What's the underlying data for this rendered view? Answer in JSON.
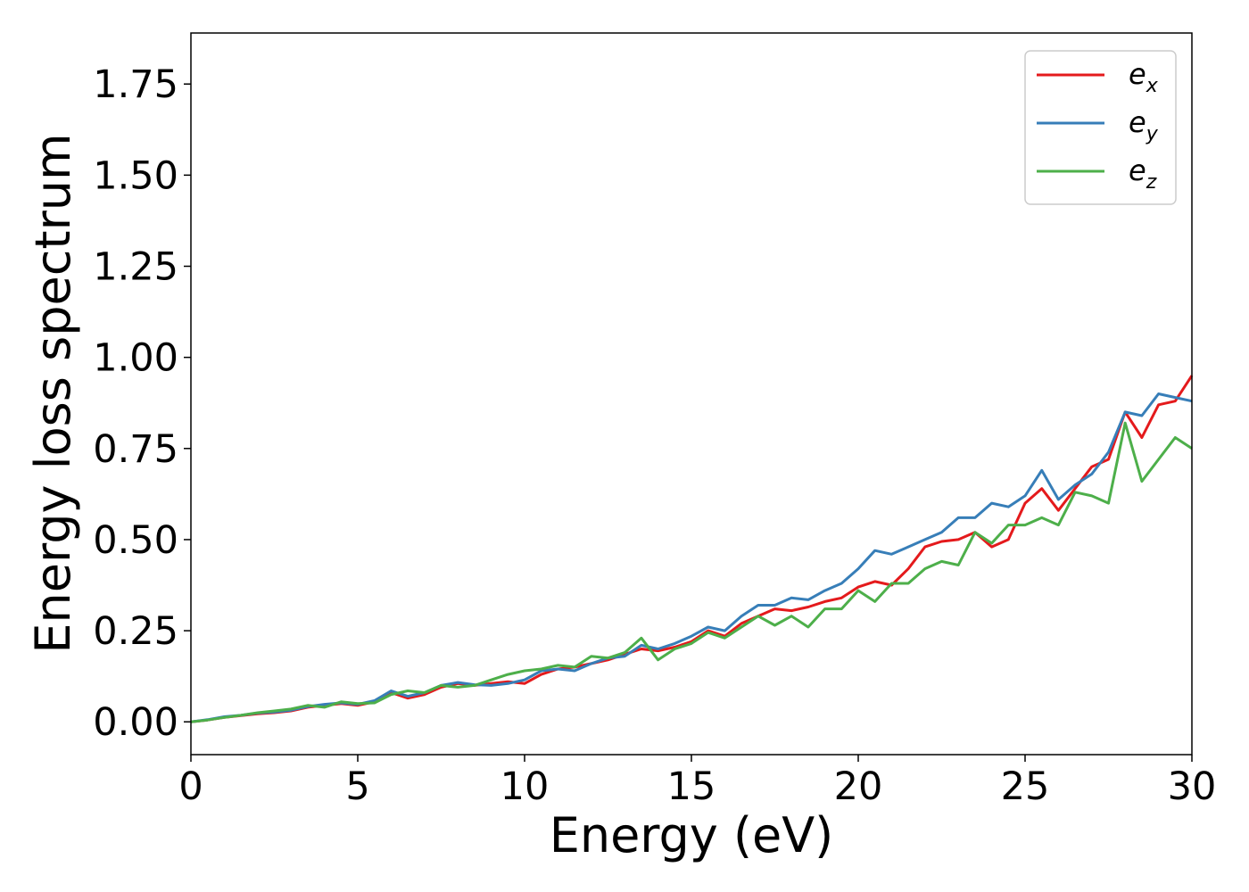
{
  "chart_data": {
    "type": "line",
    "title": "",
    "xlabel": "Energy (eV)",
    "ylabel": "Energy loss spectrum",
    "xlim": [
      0,
      30
    ],
    "ylim": [
      -0.09,
      1.89
    ],
    "xticks": [
      0,
      5,
      10,
      15,
      20,
      25,
      30
    ],
    "xtick_labels": [
      "0",
      "5",
      "10",
      "15",
      "20",
      "25",
      "30"
    ],
    "yticks": [
      0.0,
      0.25,
      0.5,
      0.75,
      1.0,
      1.25,
      1.5,
      1.75
    ],
    "ytick_labels": [
      "0.00",
      "0.25",
      "0.50",
      "0.75",
      "1.00",
      "1.25",
      "1.50",
      "1.75"
    ],
    "grid": false,
    "legend_position": "top-right",
    "x": [
      0,
      0.5,
      1,
      1.5,
      2,
      2.5,
      3,
      3.5,
      4,
      4.5,
      5,
      5.5,
      6,
      6.5,
      7,
      7.5,
      8,
      8.5,
      9,
      9.5,
      10,
      10.5,
      11,
      11.5,
      12,
      12.5,
      13,
      13.5,
      14,
      14.5,
      15,
      15.5,
      16,
      16.5,
      17,
      17.5,
      18,
      18.5,
      19,
      19.5,
      20,
      20.5,
      21,
      21.5,
      22,
      22.5,
      23,
      23.5,
      24,
      24.5,
      25,
      25.5,
      26,
      26.5,
      27,
      27.5,
      28,
      28.5,
      29,
      29.5,
      30
    ],
    "series": [
      {
        "base": "e",
        "sub": "x",
        "color": "#e41a1c",
        "values": [
          0.0,
          0.005,
          0.012,
          0.017,
          0.022,
          0.025,
          0.03,
          0.04,
          0.045,
          0.05,
          0.045,
          0.055,
          0.08,
          0.065,
          0.075,
          0.095,
          0.105,
          0.1,
          0.105,
          0.11,
          0.105,
          0.13,
          0.145,
          0.15,
          0.16,
          0.17,
          0.185,
          0.2,
          0.195,
          0.205,
          0.22,
          0.25,
          0.235,
          0.27,
          0.29,
          0.31,
          0.305,
          0.315,
          0.33,
          0.34,
          0.37,
          0.385,
          0.375,
          0.42,
          0.48,
          0.495,
          0.5,
          0.52,
          0.48,
          0.5,
          0.6,
          0.64,
          0.58,
          0.64,
          0.7,
          0.72,
          0.85,
          0.78,
          0.87,
          0.88,
          0.95
        ]
      },
      {
        "base": "e",
        "sub": "y",
        "color": "#377eb8",
        "values": [
          0.0,
          0.006,
          0.014,
          0.018,
          0.024,
          0.027,
          0.032,
          0.042,
          0.048,
          0.052,
          0.048,
          0.058,
          0.085,
          0.07,
          0.08,
          0.1,
          0.108,
          0.102,
          0.1,
          0.105,
          0.115,
          0.14,
          0.145,
          0.14,
          0.16,
          0.175,
          0.18,
          0.21,
          0.2,
          0.215,
          0.235,
          0.26,
          0.25,
          0.29,
          0.32,
          0.32,
          0.34,
          0.335,
          0.36,
          0.38,
          0.42,
          0.47,
          0.46,
          0.48,
          0.5,
          0.52,
          0.56,
          0.56,
          0.6,
          0.59,
          0.62,
          0.69,
          0.61,
          0.65,
          0.68,
          0.74,
          0.85,
          0.84,
          0.9,
          0.89,
          0.88
        ]
      },
      {
        "base": "e",
        "sub": "z",
        "color": "#4daf4a",
        "values": [
          0.0,
          0.005,
          0.012,
          0.018,
          0.025,
          0.03,
          0.035,
          0.045,
          0.04,
          0.055,
          0.05,
          0.052,
          0.075,
          0.085,
          0.08,
          0.1,
          0.095,
          0.1,
          0.115,
          0.13,
          0.14,
          0.145,
          0.155,
          0.15,
          0.18,
          0.175,
          0.19,
          0.23,
          0.17,
          0.2,
          0.215,
          0.245,
          0.23,
          0.26,
          0.29,
          0.265,
          0.29,
          0.26,
          0.31,
          0.31,
          0.36,
          0.33,
          0.38,
          0.38,
          0.42,
          0.44,
          0.43,
          0.52,
          0.49,
          0.54,
          0.54,
          0.56,
          0.54,
          0.63,
          0.62,
          0.6,
          0.82,
          0.66,
          0.72,
          0.78,
          0.75
        ]
      }
    ]
  }
}
